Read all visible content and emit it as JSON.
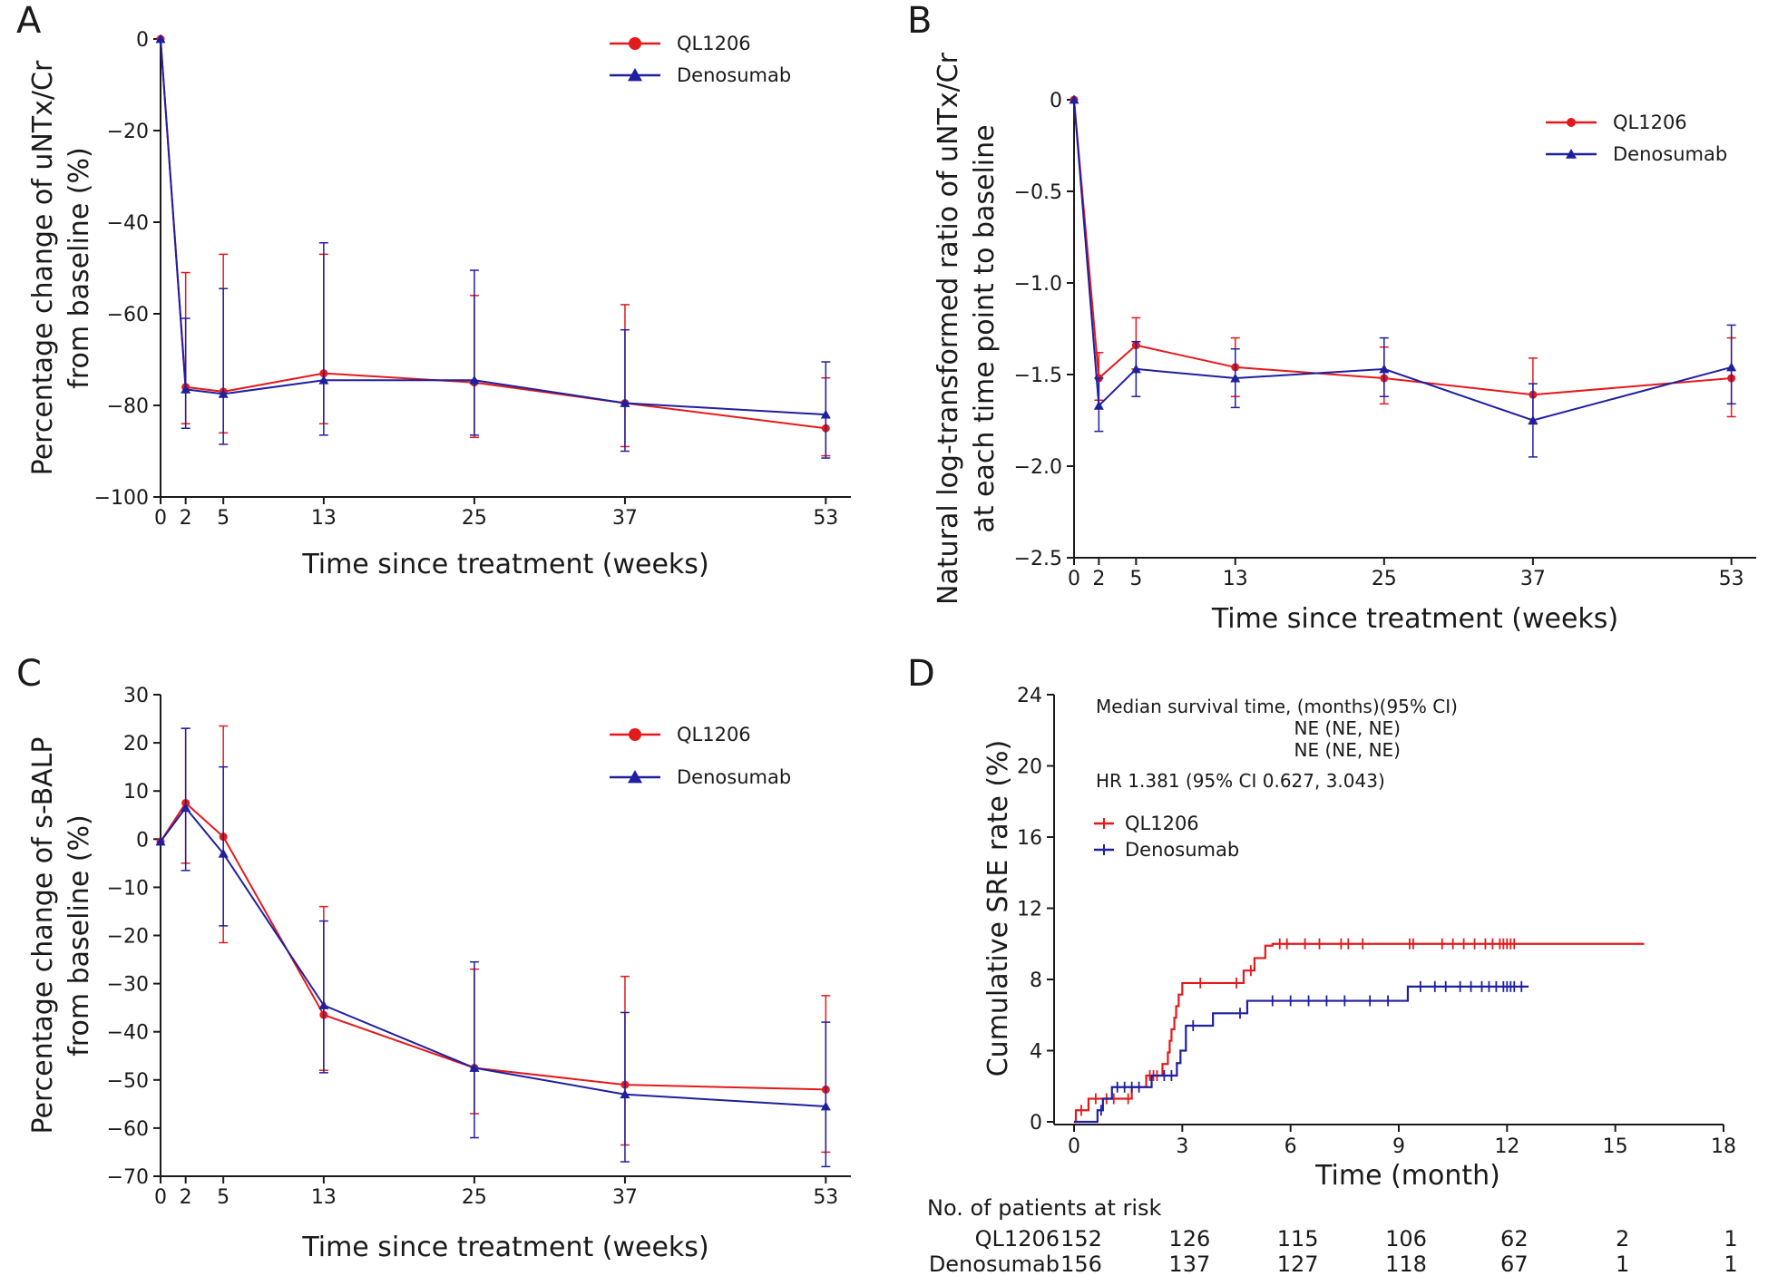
{
  "colors": {
    "red": "#e31a1c",
    "blue": "#1f1fa0",
    "axis": "#1a1a1a"
  },
  "chart_data": [
    {
      "panel": "A",
      "type": "line",
      "x": [
        0,
        2,
        5,
        13,
        25,
        37,
        53
      ],
      "xticks": [
        0,
        2,
        5,
        13,
        25,
        37,
        53
      ],
      "xlim": [
        0,
        55
      ],
      "ylim": [
        -100,
        0
      ],
      "yticks": [
        0,
        -20,
        -40,
        -60,
        -80,
        -100
      ],
      "ytick_labels": [
        "0",
        "−20",
        "−40",
        "−60",
        "−80",
        "−100"
      ],
      "xlabel": "Time since treatment (weeks)",
      "ylabel": [
        "Percentage change of uNTx/Cr",
        "from baseline (%)"
      ],
      "legend_position": "top-right",
      "series": [
        {
          "name": "QL1206",
          "color_key": "red",
          "marker": "circle",
          "values": [
            0,
            -76,
            -77,
            -73,
            -75,
            -79.5,
            -85
          ],
          "err_low": [
            0,
            -84,
            -86,
            -84,
            -87,
            -89,
            -91
          ],
          "err_high": [
            0,
            -51,
            -47,
            -47,
            -56,
            -58,
            -74
          ]
        },
        {
          "name": "Denosumab",
          "color_key": "blue",
          "marker": "triangle",
          "values": [
            0,
            -76.5,
            -77.5,
            -74.5,
            -74.5,
            -79.5,
            -82
          ],
          "err_low": [
            0,
            -85,
            -88.5,
            -86.5,
            -86.5,
            -90,
            -91.5
          ],
          "err_high": [
            0,
            -61,
            -54.5,
            -44.5,
            -50.5,
            -63.5,
            -70.5
          ]
        }
      ]
    },
    {
      "panel": "B",
      "type": "line",
      "x": [
        0,
        2,
        5,
        13,
        25,
        37,
        53
      ],
      "xticks": [
        0,
        2,
        5,
        13,
        25,
        37,
        53
      ],
      "xlim": [
        0,
        55
      ],
      "ylim": [
        -2.5,
        0
      ],
      "yticks": [
        0,
        -0.5,
        -1.0,
        -1.5,
        -2.0,
        -2.5
      ],
      "ytick_labels": [
        "0",
        "−0.5",
        "−1.0",
        "−1.5",
        "−2.0",
        "−2.5"
      ],
      "xlabel": "Time since treatment (weeks)",
      "ylabel": [
        "Natural log-transformed ratio of uNTx/Cr",
        "at each time point to baseline"
      ],
      "legend_position": "top-right",
      "series": [
        {
          "name": "QL1206",
          "color_key": "red",
          "marker": "circle",
          "values": [
            0,
            -1.52,
            -1.34,
            -1.46,
            -1.52,
            -1.61,
            -1.52
          ],
          "err_low": [
            0,
            -1.64,
            -1.47,
            -1.62,
            -1.66,
            -1.77,
            -1.73
          ],
          "err_high": [
            0,
            -1.38,
            -1.19,
            -1.3,
            -1.35,
            -1.41,
            -1.3
          ]
        },
        {
          "name": "Denosumab",
          "color_key": "blue",
          "marker": "triangle",
          "values": [
            0,
            -1.67,
            -1.47,
            -1.52,
            -1.47,
            -1.75,
            -1.46
          ],
          "err_low": [
            0,
            -1.81,
            -1.62,
            -1.68,
            -1.62,
            -1.95,
            -1.66
          ],
          "err_high": [
            0,
            -1.52,
            -1.32,
            -1.36,
            -1.3,
            -1.55,
            -1.23
          ]
        }
      ]
    },
    {
      "panel": "C",
      "type": "line",
      "x": [
        0,
        2,
        5,
        13,
        25,
        37,
        53
      ],
      "xticks": [
        0,
        2,
        5,
        13,
        25,
        37,
        53
      ],
      "xlim": [
        0,
        55
      ],
      "ylim": [
        -70,
        30
      ],
      "yticks": [
        30,
        20,
        10,
        0,
        -10,
        -20,
        -30,
        -40,
        -50,
        -60,
        -70
      ],
      "ytick_labels": [
        "30",
        "20",
        "10",
        "0",
        "−10",
        "−20",
        "−30",
        "−40",
        "−50",
        "−60",
        "−70"
      ],
      "xlabel": "Time since treatment (weeks)",
      "ylabel": [
        "Percentage change of s-BALP",
        "from baseline (%)"
      ],
      "legend_position": "top-right",
      "series": [
        {
          "name": "QL1206",
          "color_key": "red",
          "marker": "circle",
          "values": [
            -0.5,
            7.5,
            0.5,
            -36.5,
            -47.5,
            -51,
            -52
          ],
          "err_low": [
            -0.5,
            -5,
            -21.5,
            -48,
            -57,
            -63.5,
            -65
          ],
          "err_high": [
            -0.5,
            23,
            23.5,
            -14,
            -27,
            -28.5,
            -32.5
          ]
        },
        {
          "name": "Denosumab",
          "color_key": "blue",
          "marker": "triangle",
          "values": [
            -0.5,
            6.5,
            -3,
            -34.5,
            -47.5,
            -53,
            -55.5
          ],
          "err_low": [
            -0.5,
            -6.5,
            -18,
            -48.5,
            -62,
            -67,
            -68
          ],
          "err_high": [
            -0.5,
            23,
            15,
            -17,
            -25.5,
            -36,
            -38
          ]
        }
      ]
    },
    {
      "panel": "D",
      "type": "line",
      "subtype": "kaplan-meier step",
      "xlabel": "Time (month)",
      "ylabel": "Cumulative SRE rate (%)",
      "xlim": [
        0,
        18
      ],
      "xticks": [
        0,
        3,
        6,
        9,
        12,
        15,
        18
      ],
      "ylim": [
        0,
        24
      ],
      "yticks": [
        0,
        4,
        8,
        12,
        16,
        20,
        24
      ],
      "annotations": {
        "median_title": "Median survival time, (months)(95% CI)",
        "median_ql1206": "NE (NE, NE)",
        "median_denosumab": "NE (NE, NE)",
        "hr": "HR 1.381 (95% CI 0.627, 3.043)"
      },
      "legend_position": "upper-left",
      "series": [
        {
          "name": "QL1206",
          "color_key": "red",
          "steps": [
            [
              0,
              0
            ],
            [
              0.05,
              0.65
            ],
            [
              0.4,
              1.3
            ],
            [
              1.3,
              1.3
            ],
            [
              1.6,
              1.95
            ],
            [
              2.0,
              2.6
            ],
            [
              2.45,
              3.25
            ],
            [
              2.6,
              3.9
            ],
            [
              2.65,
              4.55
            ],
            [
              2.7,
              5.2
            ],
            [
              2.78,
              5.85
            ],
            [
              2.83,
              6.5
            ],
            [
              2.9,
              7.15
            ],
            [
              3.0,
              7.8
            ],
            [
              4.7,
              8.5
            ],
            [
              5.0,
              9.2
            ],
            [
              5.3,
              9.9
            ],
            [
              5.5,
              10.0
            ],
            [
              15.8,
              10.0
            ]
          ],
          "censor_times": [
            0.2,
            0.6,
            0.9,
            1.1,
            1.5,
            2.1,
            2.2,
            2.3,
            3.5,
            4.5,
            4.9,
            5.7,
            5.9,
            6.4,
            6.8,
            7.4,
            7.6,
            8.0,
            9.3,
            9.4,
            10.2,
            10.5,
            10.8,
            11.1,
            11.4,
            11.6,
            11.8,
            11.9,
            12.0,
            12.1,
            12.2
          ]
        },
        {
          "name": "Denosumab",
          "color_key": "blue",
          "steps": [
            [
              0,
              0
            ],
            [
              0.65,
              0.65
            ],
            [
              0.8,
              1.3
            ],
            [
              1.05,
              1.95
            ],
            [
              1.95,
              1.95
            ],
            [
              2.15,
              2.6
            ],
            [
              2.85,
              3.3
            ],
            [
              2.95,
              4.0
            ],
            [
              3.1,
              5.4
            ],
            [
              3.85,
              6.1
            ],
            [
              4.8,
              6.8
            ],
            [
              9.25,
              7.6
            ],
            [
              12.6,
              7.6
            ]
          ],
          "censor_times": [
            0.75,
            1.2,
            1.4,
            1.6,
            1.8,
            2.5,
            2.7,
            3.3,
            4.6,
            5.5,
            6.0,
            6.5,
            7.0,
            7.5,
            8.2,
            8.7,
            9.6,
            10.0,
            10.3,
            10.7,
            11.0,
            11.3,
            11.5,
            11.7,
            11.9,
            12.0,
            12.1,
            12.2,
            12.4
          ]
        }
      ],
      "risk_table": {
        "title": "No. of patients at risk",
        "times": [
          0,
          3,
          6,
          9,
          12,
          15,
          18
        ],
        "rows": [
          {
            "label": "QL1206",
            "counts": [
              "152",
              "126",
              "115",
              "106",
              "62",
              "2",
              "1"
            ]
          },
          {
            "label": "Denosumab",
            "counts": [
              "156",
              "137",
              "127",
              "118",
              "67",
              "1",
              "1"
            ]
          }
        ]
      }
    }
  ]
}
